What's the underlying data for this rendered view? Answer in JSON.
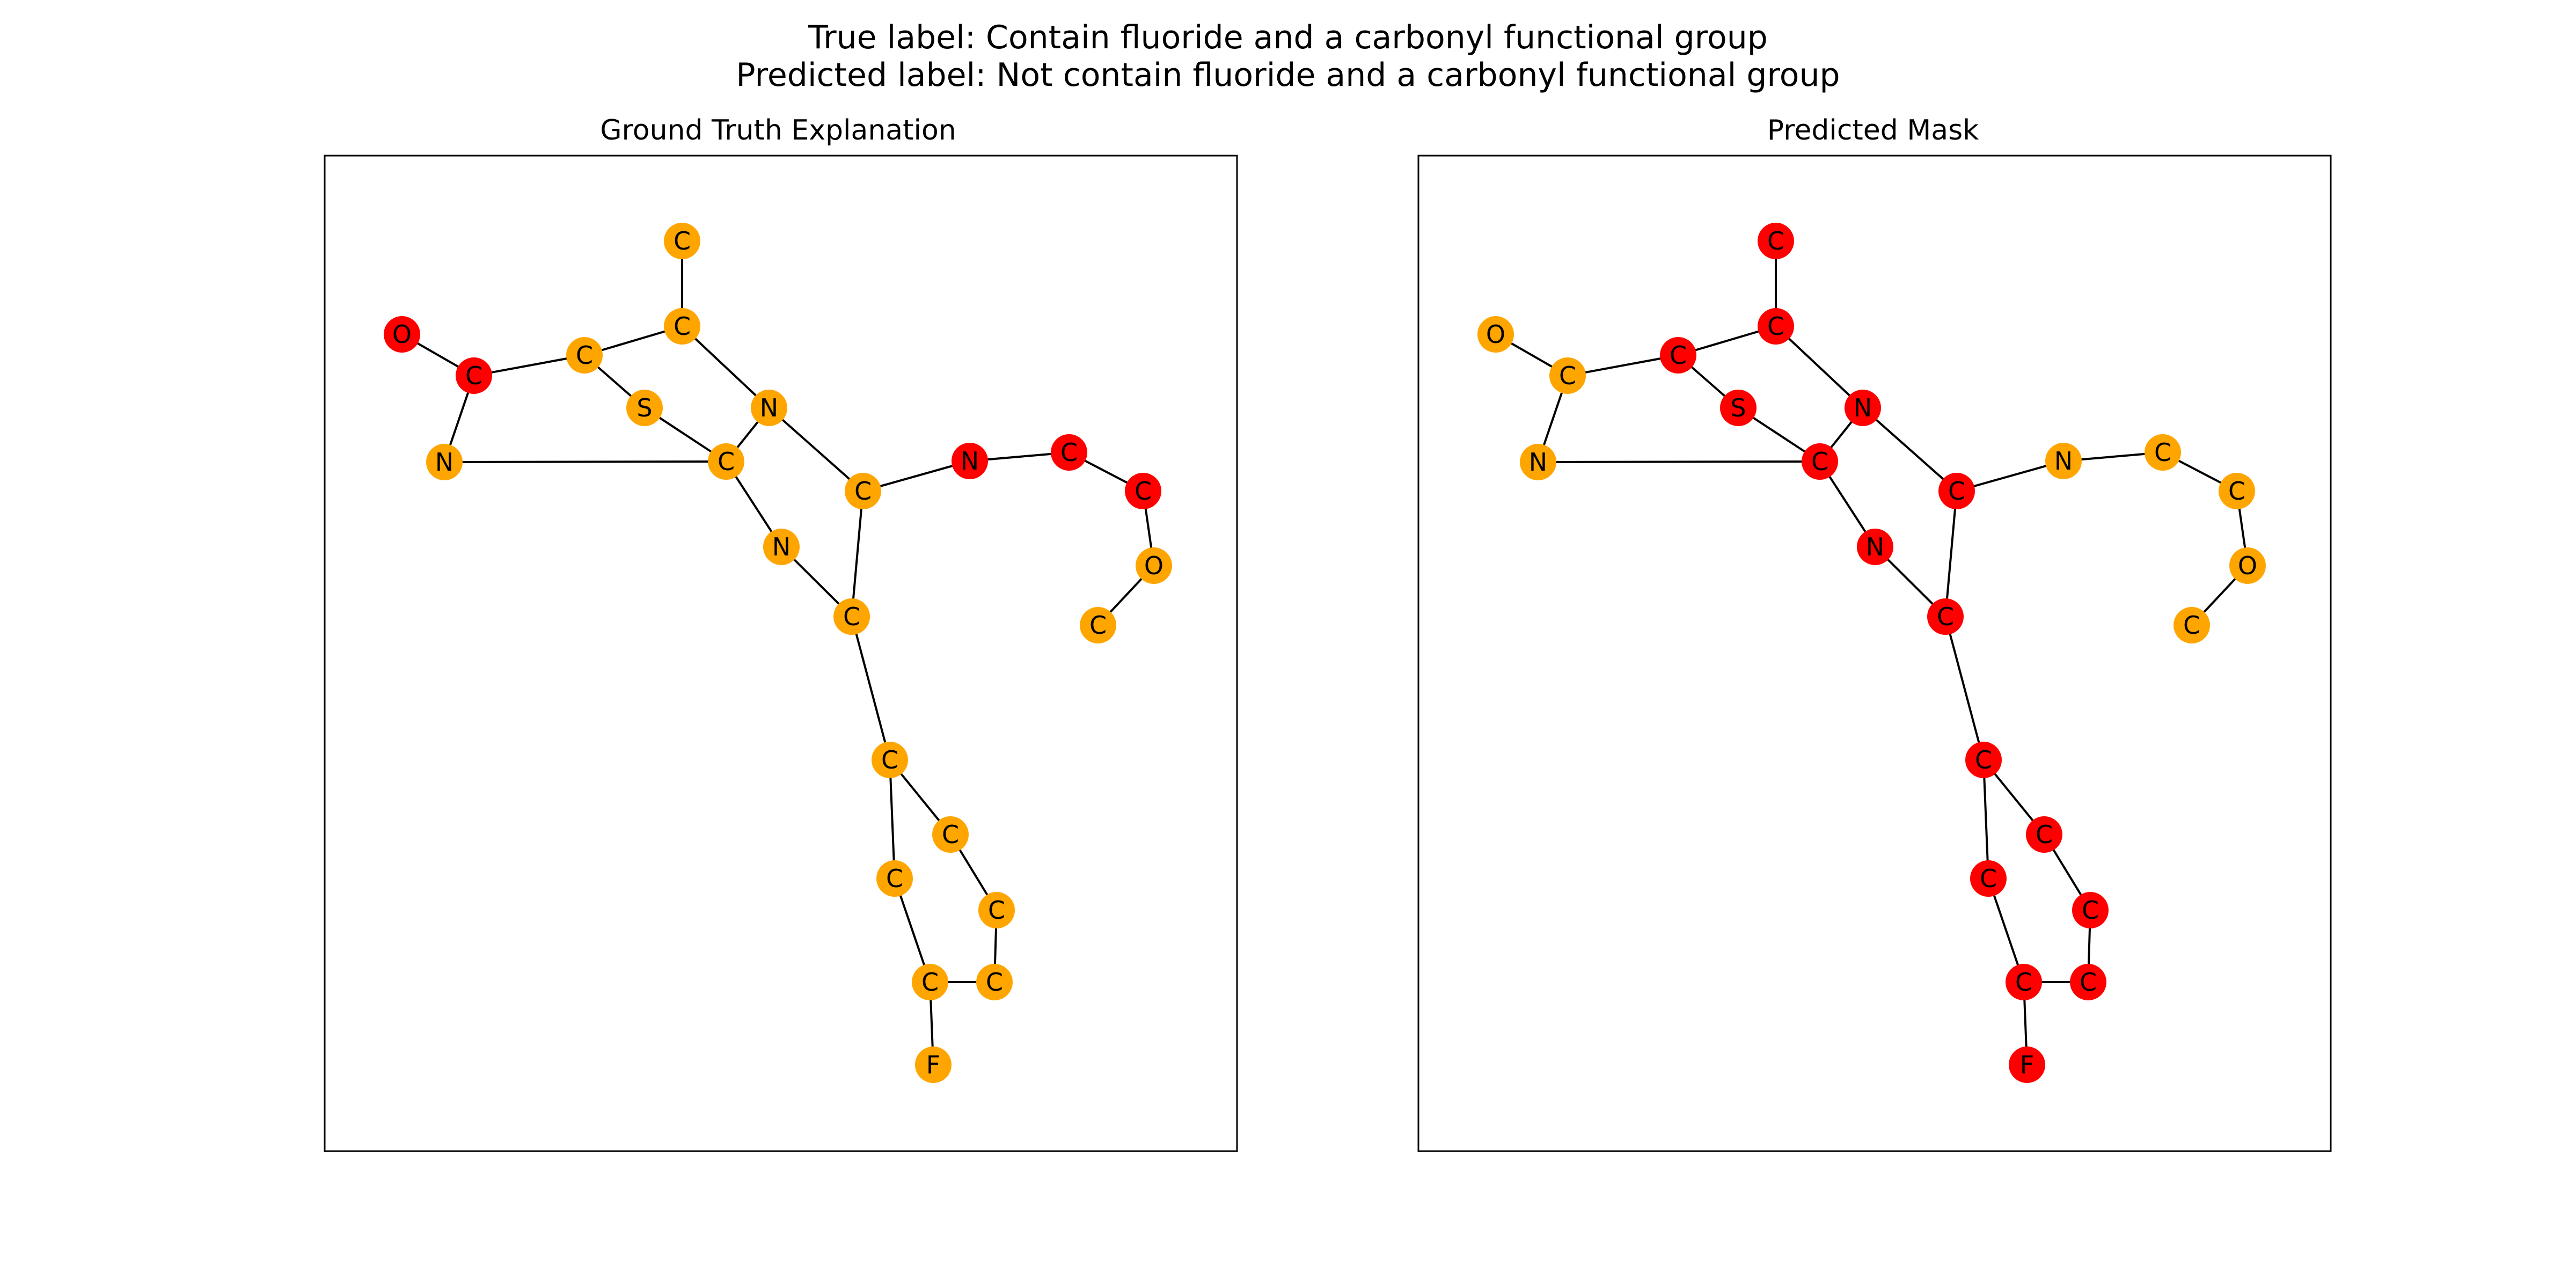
{
  "figure": {
    "title_line1": "True label: Contain fluoride and a carbonyl functional group",
    "title_line2": "Predicted label: Not contain fluoride and a carbonyl functional group"
  },
  "colors": {
    "highlight": "#ff0000",
    "normal": "#ffa500"
  },
  "molecule": {
    "nodes": [
      {
        "label": "C"
      },
      {
        "label": "C"
      },
      {
        "label": "O"
      },
      {
        "label": "C"
      },
      {
        "label": "C"
      },
      {
        "label": "N"
      },
      {
        "label": "S"
      },
      {
        "label": "N"
      },
      {
        "label": "C"
      },
      {
        "label": "N"
      },
      {
        "label": "C"
      },
      {
        "label": "C"
      },
      {
        "label": "N"
      },
      {
        "label": "C"
      },
      {
        "label": "C"
      },
      {
        "label": "O"
      },
      {
        "label": "C"
      },
      {
        "label": "C"
      },
      {
        "label": "C"
      },
      {
        "label": "C"
      },
      {
        "label": "C"
      },
      {
        "label": "C"
      },
      {
        "label": "C"
      },
      {
        "label": "F"
      }
    ],
    "edges": [
      [
        0,
        1
      ],
      [
        1,
        3
      ],
      [
        2,
        4
      ],
      [
        4,
        3
      ],
      [
        4,
        5
      ],
      [
        5,
        8
      ],
      [
        3,
        6
      ],
      [
        6,
        8
      ],
      [
        1,
        7
      ],
      [
        7,
        8
      ],
      [
        8,
        9
      ],
      [
        9,
        11
      ],
      [
        7,
        10
      ],
      [
        10,
        11
      ],
      [
        10,
        12
      ],
      [
        12,
        13
      ],
      [
        13,
        14
      ],
      [
        14,
        15
      ],
      [
        15,
        16
      ],
      [
        11,
        17
      ],
      [
        17,
        19
      ],
      [
        17,
        18
      ],
      [
        18,
        20
      ],
      [
        19,
        21
      ],
      [
        20,
        22
      ],
      [
        21,
        22
      ],
      [
        21,
        23
      ]
    ]
  },
  "panels": [
    {
      "title": "Ground Truth Explanation",
      "highlighted_nodes": [
        2,
        4,
        12,
        13,
        14
      ]
    },
    {
      "title": "Predicted Mask",
      "highlighted_nodes": [
        0,
        1,
        3,
        6,
        7,
        8,
        9,
        10,
        11,
        17,
        18,
        19,
        20,
        21,
        22,
        23
      ]
    }
  ]
}
